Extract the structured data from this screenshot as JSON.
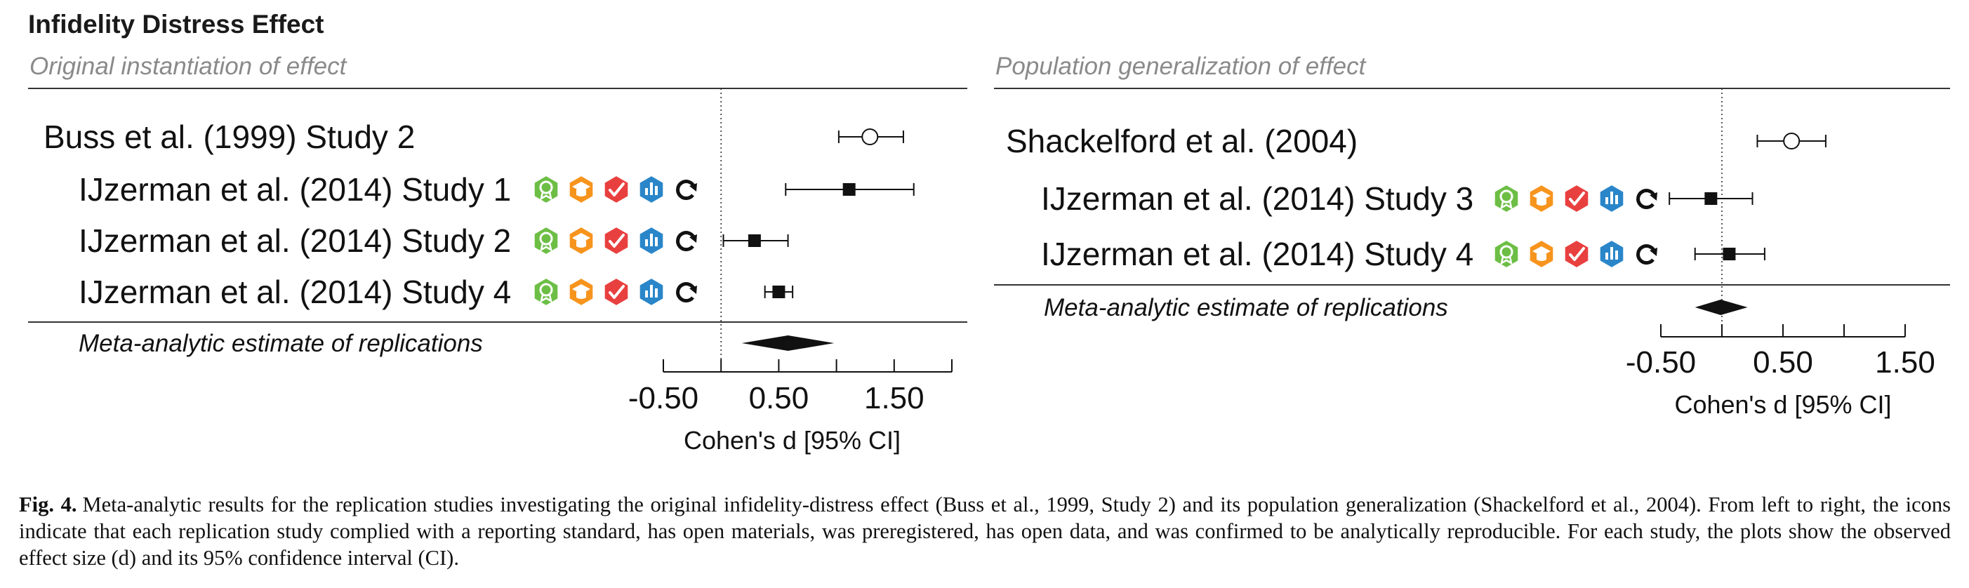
{
  "figure_title": "Infidelity Distress Effect",
  "colors": {
    "badge_reporting": "#6dbe45",
    "badge_materials": "#f7941d",
    "badge_preregistered": "#e8403f",
    "badge_data": "#2a86c9",
    "divider": "#333333",
    "subtitle": "#8a8a8a"
  },
  "badges": [
    {
      "name": "reporting-standard-badge-icon",
      "color": "#6dbe45",
      "meaning": "reporting standard"
    },
    {
      "name": "open-materials-badge-icon",
      "color": "#f7941d",
      "meaning": "open materials"
    },
    {
      "name": "preregistered-badge-icon",
      "color": "#e8403f",
      "meaning": "preregistered"
    },
    {
      "name": "open-data-badge-icon",
      "color": "#2a86c9",
      "meaning": "open data"
    },
    {
      "name": "analytically-reproducible-icon",
      "color": "#111111",
      "meaning": "analytically reproducible"
    }
  ],
  "chart_data": [
    {
      "type": "forest",
      "panel_title": "Original instantiation of effect",
      "xlabel": "Cohen's d [95% CI]",
      "ticks": [
        -0.5,
        0.0,
        0.5,
        1.0,
        1.5,
        2.0
      ],
      "tick_labels": [
        "-0.50",
        "",
        "0.50",
        "",
        "1.50",
        ""
      ],
      "xlim": [
        -0.5,
        2.0
      ],
      "reference_line": 0,
      "original": {
        "label": "Buss et al. (1999) Study 2",
        "d": 1.29,
        "ci": [
          1.02,
          1.58
        ]
      },
      "replications": [
        {
          "label": "IJzerman et al. (2014) Study 1",
          "d": 1.11,
          "ci": [
            0.56,
            1.67
          ]
        },
        {
          "label": "IJzerman et al. (2014) Study 2",
          "d": 0.29,
          "ci": [
            0.02,
            0.58
          ]
        },
        {
          "label": "IJzerman et al. (2014) Study 4",
          "d": 0.5,
          "ci": [
            0.38,
            0.62
          ]
        }
      ],
      "meta_analysis": {
        "label": "Meta-analytic estimate of replications",
        "d": 0.58,
        "ci": [
          0.18,
          0.98
        ]
      }
    },
    {
      "type": "forest",
      "panel_title": "Population generalization of effect",
      "xlabel": "Cohen's d [95% CI]",
      "ticks": [
        -0.5,
        0.0,
        0.5,
        1.0,
        1.5
      ],
      "tick_labels": [
        "-0.50",
        "",
        "0.50",
        "",
        "1.50"
      ],
      "xlim": [
        -0.5,
        1.5
      ],
      "reference_line": 0,
      "original": {
        "label": "Shackelford et al. (2004)",
        "d": 0.57,
        "ci": [
          0.29,
          0.85
        ]
      },
      "replications": [
        {
          "label": "IJzerman et al. (2014) Study 3",
          "d": -0.09,
          "ci": [
            -0.43,
            0.25
          ]
        },
        {
          "label": "IJzerman et al. (2014) Study 4",
          "d": 0.06,
          "ci": [
            -0.22,
            0.35
          ]
        }
      ],
      "meta_analysis": {
        "label": "Meta-analytic estimate of replications",
        "d": -0.01,
        "ci": [
          -0.22,
          0.21
        ]
      }
    }
  ],
  "caption": {
    "label": "Fig. 4.",
    "text": "Meta-analytic results for the replication studies investigating the original infidelity-distress effect (Buss et al., 1999, Study 2) and its population generalization (Shackelford et al., 2004). From left to right, the icons indicate that each replication study complied with a reporting standard, has open materials, was preregistered, has open data, and was confirmed to be analytically reproducible. For each study, the plots show the observed effect size (d) and its 95% confidence interval (CI)."
  }
}
